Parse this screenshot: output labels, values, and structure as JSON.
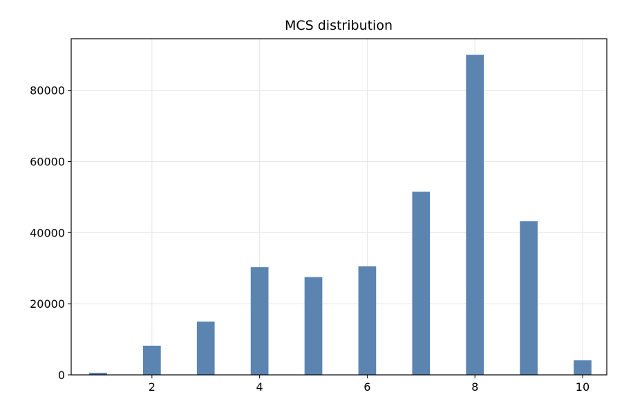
{
  "chart_data": {
    "type": "bar",
    "title": "MCS distribution",
    "xlabel": "",
    "ylabel": "",
    "x": [
      1,
      2,
      3,
      4,
      5,
      6,
      7,
      8,
      9,
      10
    ],
    "values": [
      600,
      8200,
      15000,
      30300,
      27500,
      30500,
      51500,
      90000,
      43200,
      4100
    ],
    "xlim": [
      0.5,
      10.45
    ],
    "ylim": [
      0,
      94500
    ],
    "xticks": [
      2,
      4,
      6,
      8,
      10
    ],
    "yticks": [
      0,
      20000,
      40000,
      60000,
      80000
    ],
    "grid": true,
    "bar_color": "#5b84b1"
  }
}
